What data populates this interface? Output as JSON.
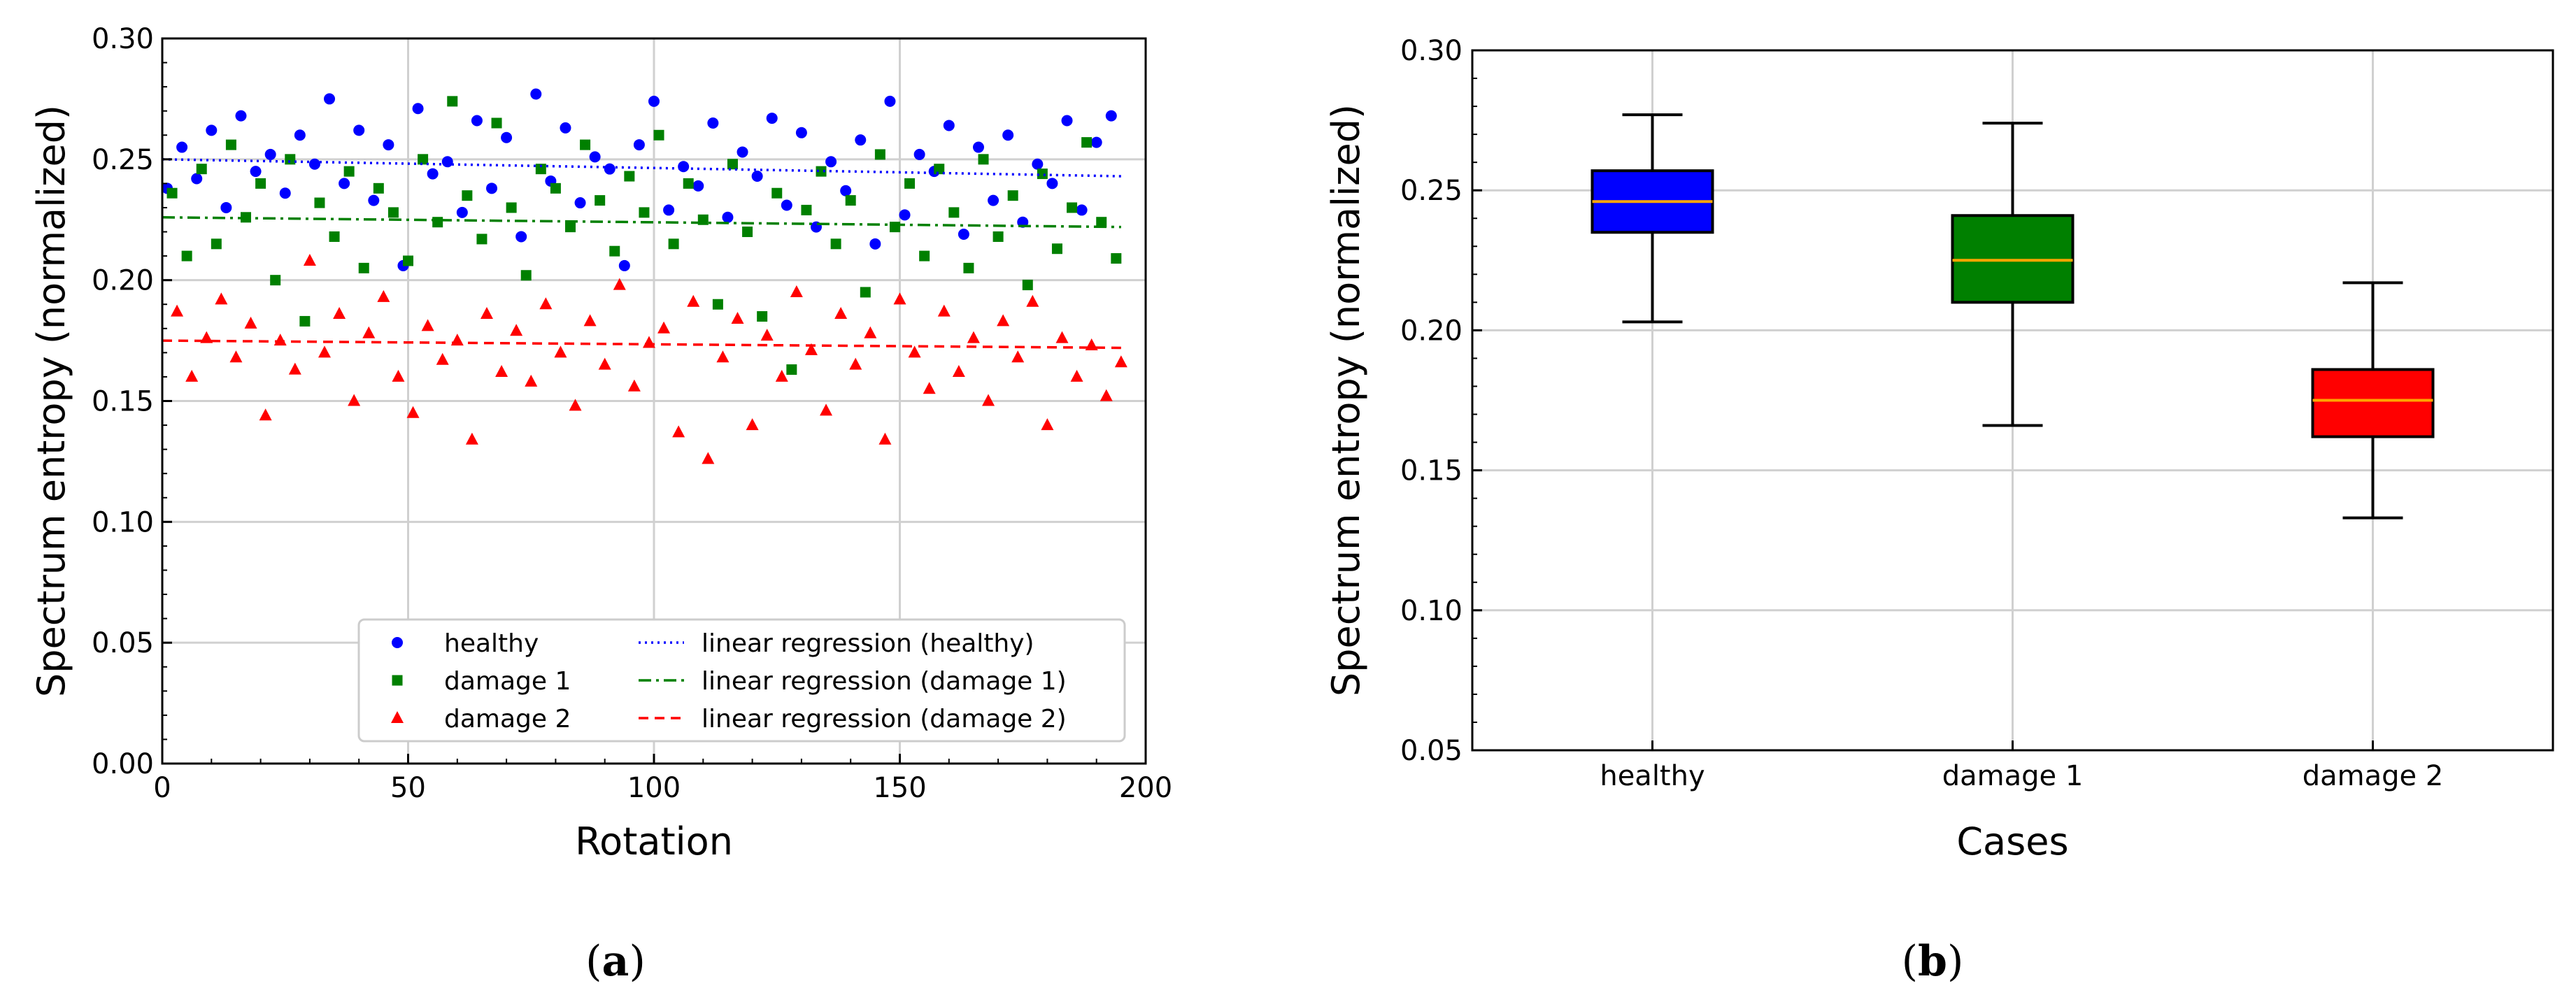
{
  "panels": {
    "a": {
      "label": "(",
      "bold": "a",
      "close": ")"
    },
    "b": {
      "label": "(",
      "bold": "b",
      "close": ")"
    }
  },
  "chart_data": [
    {
      "type": "scatter",
      "xlabel": "Rotation",
      "ylabel": "Spectrum entropy (normalized)",
      "xlim": [
        0,
        200
      ],
      "ylim": [
        0.0,
        0.3
      ],
      "xticks": [
        "0",
        "50",
        "100",
        "150",
        "200"
      ],
      "yticks": [
        "0.00",
        "0.05",
        "0.10",
        "0.15",
        "0.20",
        "0.25",
        "0.30"
      ],
      "grid": true,
      "legend_position": "lower-right",
      "series": [
        {
          "name": "healthy",
          "color": "#0000ff",
          "marker": "circle",
          "x": [
            1,
            4,
            7,
            10,
            13,
            16,
            19,
            22,
            25,
            28,
            31,
            34,
            37,
            40,
            43,
            46,
            49,
            52,
            55,
            58,
            61,
            64,
            67,
            70,
            73,
            76,
            79,
            82,
            85,
            88,
            91,
            94,
            97,
            100,
            103,
            106,
            109,
            112,
            115,
            118,
            121,
            124,
            127,
            130,
            133,
            136,
            139,
            142,
            145,
            148,
            151,
            154,
            157,
            160,
            163,
            166,
            169,
            172,
            175,
            178,
            181,
            184,
            187,
            190,
            193
          ],
          "y": [
            0.238,
            0.255,
            0.242,
            0.262,
            0.23,
            0.268,
            0.245,
            0.252,
            0.236,
            0.26,
            0.248,
            0.275,
            0.24,
            0.262,
            0.233,
            0.256,
            0.206,
            0.271,
            0.244,
            0.249,
            0.228,
            0.266,
            0.238,
            0.259,
            0.218,
            0.277,
            0.241,
            0.263,
            0.232,
            0.251,
            0.246,
            0.206,
            0.256,
            0.274,
            0.229,
            0.247,
            0.239,
            0.265,
            0.226,
            0.253,
            0.243,
            0.267,
            0.231,
            0.261,
            0.222,
            0.249,
            0.237,
            0.258,
            0.215,
            0.274,
            0.227,
            0.252,
            0.245,
            0.264,
            0.219,
            0.255,
            0.233,
            0.26,
            0.224,
            0.248,
            0.24,
            0.266,
            0.229,
            0.257,
            0.268
          ]
        },
        {
          "name": "damage 1",
          "color": "#008000",
          "marker": "square",
          "x": [
            2,
            5,
            8,
            11,
            14,
            17,
            20,
            23,
            26,
            29,
            32,
            35,
            38,
            41,
            44,
            47,
            50,
            53,
            56,
            59,
            62,
            65,
            68,
            71,
            74,
            77,
            80,
            83,
            86,
            89,
            92,
            95,
            98,
            101,
            104,
            107,
            110,
            113,
            116,
            119,
            122,
            125,
            128,
            131,
            134,
            137,
            140,
            143,
            146,
            149,
            152,
            155,
            158,
            161,
            164,
            167,
            170,
            173,
            176,
            179,
            182,
            185,
            188,
            191,
            194
          ],
          "y": [
            0.236,
            0.21,
            0.246,
            0.215,
            0.256,
            0.226,
            0.24,
            0.2,
            0.25,
            0.183,
            0.232,
            0.218,
            0.245,
            0.205,
            0.238,
            0.228,
            0.208,
            0.25,
            0.224,
            0.274,
            0.235,
            0.217,
            0.265,
            0.23,
            0.202,
            0.246,
            0.238,
            0.222,
            0.256,
            0.233,
            0.212,
            0.243,
            0.228,
            0.26,
            0.215,
            0.24,
            0.225,
            0.19,
            0.248,
            0.22,
            0.185,
            0.236,
            0.163,
            0.229,
            0.245,
            0.215,
            0.233,
            0.195,
            0.252,
            0.222,
            0.24,
            0.21,
            0.246,
            0.228,
            0.205,
            0.25,
            0.218,
            0.235,
            0.198,
            0.244,
            0.213,
            0.23,
            0.257,
            0.224,
            0.209
          ]
        },
        {
          "name": "damage 2",
          "color": "#ff0000",
          "marker": "triangle",
          "x": [
            3,
            6,
            9,
            12,
            15,
            18,
            21,
            24,
            27,
            30,
            33,
            36,
            39,
            42,
            45,
            48,
            51,
            54,
            57,
            60,
            63,
            66,
            69,
            72,
            75,
            78,
            81,
            84,
            87,
            90,
            93,
            96,
            99,
            102,
            105,
            108,
            111,
            114,
            117,
            120,
            123,
            126,
            129,
            132,
            135,
            138,
            141,
            144,
            147,
            150,
            153,
            156,
            159,
            162,
            165,
            168,
            171,
            174,
            177,
            180,
            183,
            186,
            189,
            192,
            195
          ],
          "y": [
            0.187,
            0.16,
            0.176,
            0.192,
            0.168,
            0.182,
            0.144,
            0.175,
            0.163,
            0.208,
            0.17,
            0.186,
            0.15,
            0.178,
            0.193,
            0.16,
            0.145,
            0.181,
            0.167,
            0.175,
            0.134,
            0.186,
            0.162,
            0.179,
            0.158,
            0.19,
            0.17,
            0.148,
            0.183,
            0.165,
            0.198,
            0.156,
            0.174,
            0.18,
            0.137,
            0.191,
            0.126,
            0.168,
            0.184,
            0.14,
            0.177,
            0.16,
            0.195,
            0.171,
            0.146,
            0.186,
            0.165,
            0.178,
            0.134,
            0.192,
            0.17,
            0.155,
            0.187,
            0.162,
            0.176,
            0.15,
            0.183,
            0.168,
            0.191,
            0.14,
            0.176,
            0.16,
            0.173,
            0.152,
            0.166
          ]
        },
        {
          "name": "linear regression (healthy)",
          "color": "#0000ff",
          "style": "dotted",
          "x": [
            0,
            195
          ],
          "y": [
            0.25,
            0.243
          ]
        },
        {
          "name": "linear regression (damage 1)",
          "color": "#008000",
          "style": "dashdot",
          "x": [
            0,
            195
          ],
          "y": [
            0.226,
            0.222
          ]
        },
        {
          "name": "linear regression (damage 2)",
          "color": "#ff0000",
          "style": "dashed",
          "x": [
            0,
            195
          ],
          "y": [
            0.175,
            0.172
          ]
        }
      ]
    },
    {
      "type": "box",
      "xlabel": "Cases",
      "ylabel": "Spectrum entropy (normalized)",
      "ylim": [
        0.05,
        0.3
      ],
      "yticks": [
        "0.05",
        "0.10",
        "0.15",
        "0.20",
        "0.25",
        "0.30"
      ],
      "grid": true,
      "categories": [
        "healthy",
        "damage 1",
        "damage 2"
      ],
      "colors": [
        "#0000ff",
        "#008000",
        "#ff0000"
      ],
      "median_color": "#ffa500",
      "boxes": [
        {
          "whisker_low": 0.203,
          "q1": 0.235,
          "median": 0.246,
          "q3": 0.257,
          "whisker_high": 0.277
        },
        {
          "whisker_low": 0.166,
          "q1": 0.21,
          "median": 0.225,
          "q3": 0.241,
          "whisker_high": 0.274
        },
        {
          "whisker_low": 0.133,
          "q1": 0.162,
          "median": 0.175,
          "q3": 0.186,
          "whisker_high": 0.217
        }
      ]
    }
  ]
}
